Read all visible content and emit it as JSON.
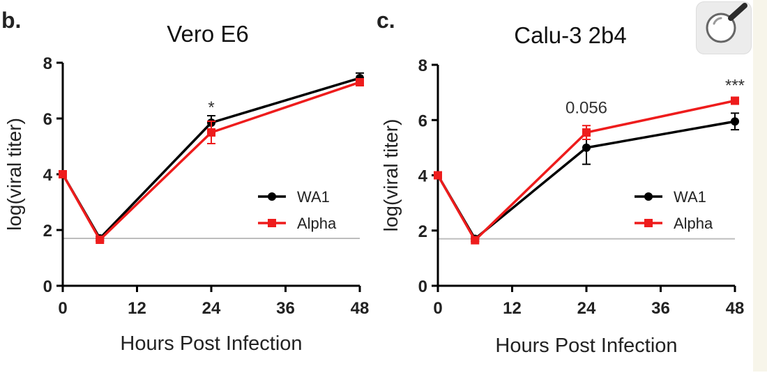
{
  "chart_data": [
    {
      "type": "line",
      "panel_label": "b.",
      "title": "Vero E6",
      "xlabel": "Hours Post Infection",
      "ylabel": "log(viral titer)",
      "xlim": [
        0,
        48
      ],
      "ylim": [
        0,
        8
      ],
      "xticks": [
        0,
        12,
        24,
        36,
        48
      ],
      "yticks": [
        0,
        2,
        4,
        6,
        8
      ],
      "detection_limit": 1.7,
      "legend_position": "center-right",
      "series": [
        {
          "name": "WA1",
          "color": "#000000",
          "marker": "circle",
          "x": [
            0,
            6,
            24,
            48
          ],
          "y": [
            4.0,
            1.7,
            5.85,
            7.45
          ],
          "err": [
            0.05,
            0.08,
            0.25,
            0.18
          ]
        },
        {
          "name": "Alpha",
          "color": "#ee1c1c",
          "marker": "square",
          "x": [
            0,
            6,
            24,
            48
          ],
          "y": [
            4.0,
            1.65,
            5.5,
            7.3
          ],
          "err": [
            0.05,
            0.05,
            0.4,
            0.12
          ]
        }
      ],
      "annotations": [
        {
          "text": "*",
          "x": 24,
          "y": 6.2
        }
      ]
    },
    {
      "type": "line",
      "panel_label": "c.",
      "title": "Calu-3 2b4",
      "xlabel": "Hours Post Infection",
      "ylabel": "log(viral titer)",
      "xlim": [
        0,
        48
      ],
      "ylim": [
        0,
        8
      ],
      "xticks": [
        0,
        12,
        24,
        36,
        48
      ],
      "yticks": [
        0,
        2,
        4,
        6,
        8
      ],
      "detection_limit": 1.7,
      "legend_position": "center-right",
      "series": [
        {
          "name": "WA1",
          "color": "#000000",
          "marker": "circle",
          "x": [
            0,
            6,
            24,
            48
          ],
          "y": [
            4.0,
            1.7,
            5.0,
            5.95
          ],
          "err": [
            0.05,
            0.08,
            0.6,
            0.3
          ]
        },
        {
          "name": "Alpha",
          "color": "#ee1c1c",
          "marker": "square",
          "x": [
            0,
            6,
            24,
            48
          ],
          "y": [
            4.0,
            1.65,
            5.55,
            6.7
          ],
          "err": [
            0.05,
            0.05,
            0.25,
            0.08
          ]
        }
      ],
      "annotations": [
        {
          "text": "0.056",
          "x": 24,
          "y": 6.25
        },
        {
          "text": "***",
          "x": 48,
          "y": 7.05
        }
      ]
    }
  ],
  "zoom_button": {
    "icon": "magnifier-icon"
  }
}
